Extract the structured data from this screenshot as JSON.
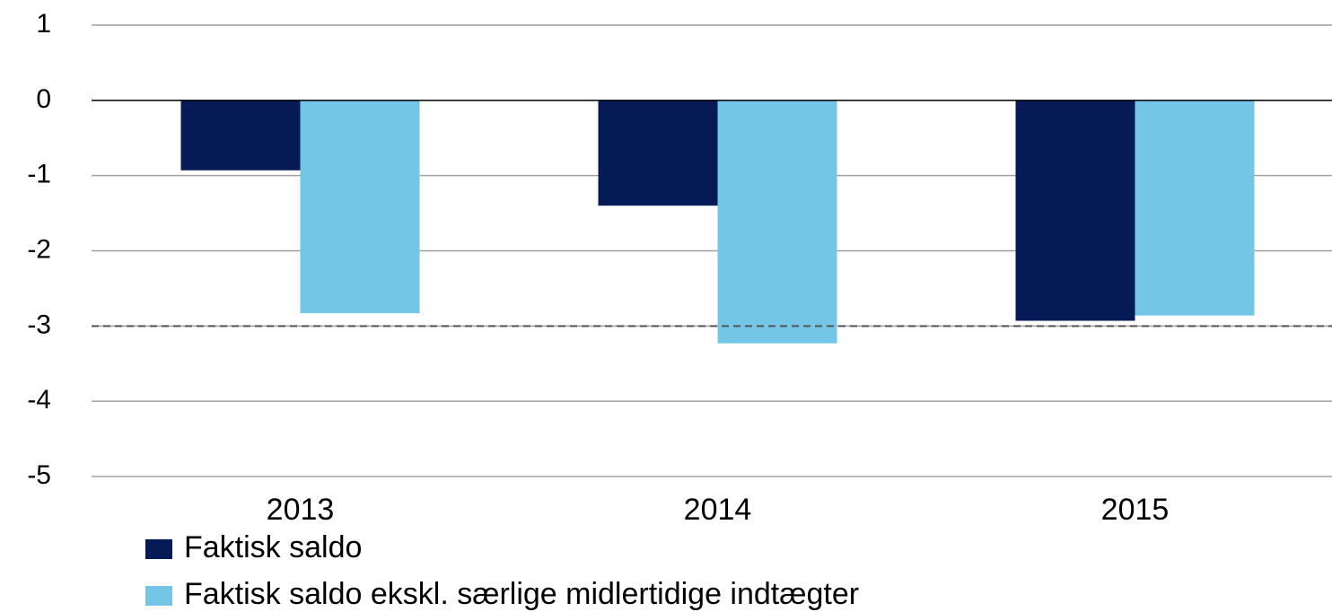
{
  "chart_data": {
    "type": "bar",
    "categories": [
      "2013",
      "2014",
      "2015"
    ],
    "series": [
      {
        "name": "Faktisk saldo",
        "color": "#061a57",
        "values": [
          -0.93,
          -1.4,
          -2.93
        ]
      },
      {
        "name": "Faktisk saldo ekskl. særlige midlertidige indtægter",
        "color": "#73c6e6",
        "values": [
          -2.83,
          -3.23,
          -2.86
        ]
      }
    ],
    "ylim": [
      -5,
      1
    ],
    "yticks": [
      1,
      0,
      -1,
      -2,
      -3,
      -4,
      -5
    ],
    "reference_line": -3,
    "grid": true,
    "legend": "bottom"
  }
}
